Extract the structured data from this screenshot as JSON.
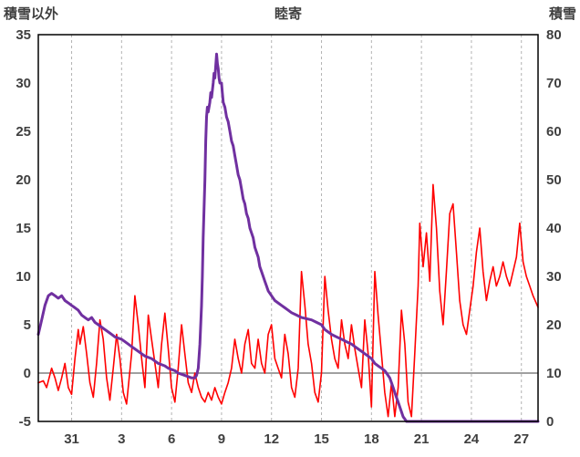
{
  "chart_data": {
    "type": "line",
    "title": "睦寄",
    "left_axis": {
      "label": "積雪以外",
      "min": -5,
      "max": 35,
      "ticks": [
        35,
        30,
        25,
        20,
        15,
        10,
        5,
        0,
        -5
      ]
    },
    "right_axis": {
      "label": "積雪",
      "min": 0,
      "max": 80,
      "ticks": [
        80,
        70,
        60,
        50,
        40,
        30,
        20,
        10,
        0
      ]
    },
    "x_axis": {
      "min": 0,
      "max": 30,
      "tick_labels": [
        "31",
        "3",
        "6",
        "9",
        "12",
        "15",
        "18",
        "21",
        "24",
        "27"
      ],
      "tick_positions": [
        2,
        5,
        8,
        11,
        14,
        17,
        20,
        23,
        26,
        29
      ]
    },
    "zero_line_value": 0,
    "grid": "vertical-dashed",
    "legend": "none",
    "colors": {
      "grid": "#b3b3b3",
      "frame": "#000000",
      "zero_line": "#808080",
      "text": "#3f3f3f",
      "background": "#ffffff",
      "series_red": "#ff0000",
      "series_purple": "#7030a0"
    },
    "series": [
      {
        "name": "積雪以外",
        "axis": "left",
        "color": "#ff0000",
        "width": 1.6,
        "points": [
          [
            0.0,
            -1
          ],
          [
            0.3,
            -0.8
          ],
          [
            0.5,
            -1.5
          ],
          [
            0.8,
            0.5
          ],
          [
            1.0,
            -0.5
          ],
          [
            1.2,
            -1.8
          ],
          [
            1.4,
            -0.5
          ],
          [
            1.6,
            1.0
          ],
          [
            1.8,
            -1.5
          ],
          [
            2.0,
            -2.2
          ],
          [
            2.2,
            1.5
          ],
          [
            2.4,
            4.5
          ],
          [
            2.5,
            3.0
          ],
          [
            2.7,
            4.8
          ],
          [
            2.9,
            2.0
          ],
          [
            3.1,
            -1.0
          ],
          [
            3.3,
            -2.5
          ],
          [
            3.5,
            1.0
          ],
          [
            3.7,
            5.5
          ],
          [
            3.9,
            3.5
          ],
          [
            4.1,
            -0.5
          ],
          [
            4.3,
            -2.8
          ],
          [
            4.5,
            0.5
          ],
          [
            4.7,
            4.0
          ],
          [
            4.9,
            1.5
          ],
          [
            5.1,
            -2.0
          ],
          [
            5.3,
            -3.2
          ],
          [
            5.6,
            2.0
          ],
          [
            5.8,
            8.0
          ],
          [
            6.0,
            5.0
          ],
          [
            6.2,
            1.5
          ],
          [
            6.4,
            -1.5
          ],
          [
            6.6,
            6.0
          ],
          [
            6.8,
            3.5
          ],
          [
            7.0,
            1.0
          ],
          [
            7.2,
            -1.5
          ],
          [
            7.4,
            3.0
          ],
          [
            7.6,
            6.2
          ],
          [
            7.8,
            2.5
          ],
          [
            8.0,
            -1.5
          ],
          [
            8.2,
            -3.0
          ],
          [
            8.4,
            0.5
          ],
          [
            8.6,
            5.0
          ],
          [
            8.8,
            2.0
          ],
          [
            9.0,
            -1.0
          ],
          [
            9.2,
            -2.0
          ],
          [
            9.4,
            0.0
          ],
          [
            9.6,
            -1.5
          ],
          [
            9.8,
            -2.5
          ],
          [
            10.0,
            -3.0
          ],
          [
            10.2,
            -2.0
          ],
          [
            10.4,
            -2.8
          ],
          [
            10.6,
            -1.5
          ],
          [
            10.8,
            -2.5
          ],
          [
            11.0,
            -3.2
          ],
          [
            11.2,
            -2.0
          ],
          [
            11.4,
            -1.0
          ],
          [
            11.6,
            0.5
          ],
          [
            11.8,
            3.5
          ],
          [
            12.0,
            1.5
          ],
          [
            12.2,
            0.0
          ],
          [
            12.4,
            3.0
          ],
          [
            12.6,
            4.5
          ],
          [
            12.8,
            1.0
          ],
          [
            13.0,
            0.5
          ],
          [
            13.2,
            3.5
          ],
          [
            13.4,
            1.0
          ],
          [
            13.6,
            0.0
          ],
          [
            13.8,
            4.0
          ],
          [
            14.0,
            5.0
          ],
          [
            14.2,
            1.5
          ],
          [
            14.4,
            0.5
          ],
          [
            14.6,
            -0.5
          ],
          [
            14.8,
            4.0
          ],
          [
            15.0,
            2.0
          ],
          [
            15.2,
            -1.5
          ],
          [
            15.4,
            -2.5
          ],
          [
            15.6,
            0.5
          ],
          [
            15.8,
            10.5
          ],
          [
            16.0,
            7.0
          ],
          [
            16.2,
            3.0
          ],
          [
            16.4,
            1.0
          ],
          [
            16.6,
            -2.0
          ],
          [
            16.8,
            -3.0
          ],
          [
            17.0,
            0.0
          ],
          [
            17.2,
            10.0
          ],
          [
            17.4,
            6.5
          ],
          [
            17.6,
            3.5
          ],
          [
            17.8,
            1.5
          ],
          [
            18.0,
            0.5
          ],
          [
            18.2,
            5.5
          ],
          [
            18.4,
            3.0
          ],
          [
            18.6,
            1.5
          ],
          [
            18.8,
            5.0
          ],
          [
            19.0,
            2.5
          ],
          [
            19.2,
            0.5
          ],
          [
            19.4,
            -1.5
          ],
          [
            19.6,
            5.5
          ],
          [
            19.8,
            2.0
          ],
          [
            20.0,
            -3.5
          ],
          [
            20.2,
            10.5
          ],
          [
            20.4,
            6.0
          ],
          [
            20.6,
            2.0
          ],
          [
            20.8,
            -2.0
          ],
          [
            21.0,
            -4.5
          ],
          [
            21.2,
            -1.0
          ],
          [
            21.4,
            -4.5
          ],
          [
            21.6,
            -1.5
          ],
          [
            21.8,
            6.5
          ],
          [
            22.0,
            3.0
          ],
          [
            22.2,
            -3.0
          ],
          [
            22.4,
            -4.5
          ],
          [
            22.6,
            2.0
          ],
          [
            22.8,
            9.0
          ],
          [
            22.9,
            15.5
          ],
          [
            23.1,
            11.0
          ],
          [
            23.3,
            14.5
          ],
          [
            23.5,
            9.5
          ],
          [
            23.7,
            19.5
          ],
          [
            23.9,
            15.0
          ],
          [
            24.1,
            8.5
          ],
          [
            24.3,
            5.0
          ],
          [
            24.5,
            10.5
          ],
          [
            24.7,
            16.5
          ],
          [
            24.9,
            17.5
          ],
          [
            25.1,
            12.5
          ],
          [
            25.3,
            7.5
          ],
          [
            25.5,
            5.0
          ],
          [
            25.7,
            4.0
          ],
          [
            25.9,
            6.5
          ],
          [
            26.1,
            9.0
          ],
          [
            26.3,
            12.5
          ],
          [
            26.5,
            15.0
          ],
          [
            26.7,
            10.5
          ],
          [
            26.9,
            7.5
          ],
          [
            27.1,
            9.5
          ],
          [
            27.3,
            11.0
          ],
          [
            27.5,
            9.0
          ],
          [
            27.7,
            10.0
          ],
          [
            27.9,
            11.5
          ],
          [
            28.1,
            10.0
          ],
          [
            28.3,
            9.0
          ],
          [
            28.5,
            10.5
          ],
          [
            28.7,
            12.0
          ],
          [
            28.9,
            15.5
          ],
          [
            29.1,
            11.5
          ],
          [
            29.3,
            10.0
          ],
          [
            29.5,
            9.0
          ],
          [
            29.7,
            8.0
          ],
          [
            30.0,
            6.8
          ]
        ]
      },
      {
        "name": "積雪",
        "axis": "right",
        "color": "#7030a0",
        "width": 3,
        "points": [
          [
            0.0,
            18
          ],
          [
            0.2,
            21
          ],
          [
            0.4,
            24
          ],
          [
            0.6,
            26
          ],
          [
            0.8,
            26.5
          ],
          [
            1.0,
            26
          ],
          [
            1.2,
            25.5
          ],
          [
            1.4,
            26
          ],
          [
            1.6,
            25
          ],
          [
            1.8,
            24.5
          ],
          [
            2.0,
            24
          ],
          [
            2.2,
            23.5
          ],
          [
            2.4,
            23
          ],
          [
            2.6,
            22
          ],
          [
            2.8,
            21.5
          ],
          [
            3.0,
            21
          ],
          [
            3.2,
            21.5
          ],
          [
            3.4,
            20.5
          ],
          [
            3.6,
            20
          ],
          [
            3.8,
            19.5
          ],
          [
            4.0,
            19
          ],
          [
            4.2,
            18.5
          ],
          [
            4.4,
            18
          ],
          [
            4.6,
            17.5
          ],
          [
            5.0,
            17
          ],
          [
            5.2,
            16.5
          ],
          [
            5.4,
            16
          ],
          [
            5.6,
            15.5
          ],
          [
            5.8,
            15
          ],
          [
            6.0,
            14.5
          ],
          [
            6.2,
            14
          ],
          [
            6.4,
            13.5
          ],
          [
            6.8,
            13
          ],
          [
            7.0,
            12.5
          ],
          [
            7.2,
            12
          ],
          [
            7.6,
            11.5
          ],
          [
            7.8,
            11
          ],
          [
            8.2,
            10.5
          ],
          [
            8.4,
            10
          ],
          [
            8.8,
            9.5
          ],
          [
            9.2,
            9
          ],
          [
            9.4,
            9
          ],
          [
            9.5,
            9.5
          ],
          [
            9.6,
            11
          ],
          [
            9.7,
            16
          ],
          [
            9.8,
            24
          ],
          [
            9.85,
            30
          ],
          [
            9.9,
            38
          ],
          [
            10.0,
            50
          ],
          [
            10.05,
            58
          ],
          [
            10.1,
            63
          ],
          [
            10.15,
            65
          ],
          [
            10.2,
            64
          ],
          [
            10.3,
            66
          ],
          [
            10.35,
            68
          ],
          [
            10.4,
            67
          ],
          [
            10.5,
            70
          ],
          [
            10.55,
            72
          ],
          [
            10.6,
            71
          ],
          [
            10.7,
            76
          ],
          [
            10.75,
            74
          ],
          [
            10.8,
            73
          ],
          [
            10.85,
            71
          ],
          [
            10.9,
            70
          ],
          [
            11.0,
            70
          ],
          [
            11.05,
            68
          ],
          [
            11.1,
            66
          ],
          [
            11.2,
            65
          ],
          [
            11.3,
            63
          ],
          [
            11.4,
            62
          ],
          [
            11.5,
            60
          ],
          [
            11.6,
            58
          ],
          [
            11.7,
            57
          ],
          [
            11.8,
            55
          ],
          [
            11.9,
            53
          ],
          [
            12.0,
            51
          ],
          [
            12.1,
            50
          ],
          [
            12.2,
            48
          ],
          [
            12.3,
            46
          ],
          [
            12.4,
            45
          ],
          [
            12.5,
            43
          ],
          [
            12.6,
            42
          ],
          [
            12.7,
            40
          ],
          [
            12.8,
            39
          ],
          [
            12.9,
            38
          ],
          [
            13.0,
            36
          ],
          [
            13.1,
            35
          ],
          [
            13.2,
            34
          ],
          [
            13.3,
            32
          ],
          [
            13.4,
            31
          ],
          [
            13.5,
            30
          ],
          [
            13.6,
            29
          ],
          [
            13.7,
            28
          ],
          [
            13.8,
            27
          ],
          [
            13.9,
            26.5
          ],
          [
            14.0,
            26
          ],
          [
            14.2,
            25
          ],
          [
            14.4,
            24.5
          ],
          [
            14.6,
            24
          ],
          [
            14.8,
            23.5
          ],
          [
            15.0,
            23
          ],
          [
            15.2,
            22.5
          ],
          [
            15.5,
            22
          ],
          [
            15.8,
            21.5
          ],
          [
            16.4,
            21
          ],
          [
            16.7,
            20.5
          ],
          [
            17.0,
            20
          ],
          [
            17.2,
            19
          ],
          [
            17.4,
            18.5
          ],
          [
            17.6,
            18
          ],
          [
            17.9,
            17.5
          ],
          [
            18.2,
            17
          ],
          [
            18.5,
            16.5
          ],
          [
            18.8,
            16
          ],
          [
            19.0,
            15.5
          ],
          [
            19.2,
            15
          ],
          [
            19.4,
            14.5
          ],
          [
            19.6,
            14
          ],
          [
            19.8,
            13.5
          ],
          [
            20.0,
            13
          ],
          [
            20.2,
            12
          ],
          [
            20.4,
            11.5
          ],
          [
            20.6,
            11
          ],
          [
            20.8,
            10.5
          ],
          [
            20.9,
            10
          ],
          [
            21.0,
            9.5
          ],
          [
            21.1,
            9
          ],
          [
            21.2,
            8
          ],
          [
            21.3,
            7
          ],
          [
            21.4,
            6
          ],
          [
            21.5,
            5
          ],
          [
            21.6,
            4
          ],
          [
            21.7,
            3
          ],
          [
            21.8,
            2
          ],
          [
            21.9,
            1
          ],
          [
            22.0,
            0.5
          ],
          [
            22.1,
            0
          ],
          [
            30.0,
            0
          ]
        ]
      }
    ]
  }
}
